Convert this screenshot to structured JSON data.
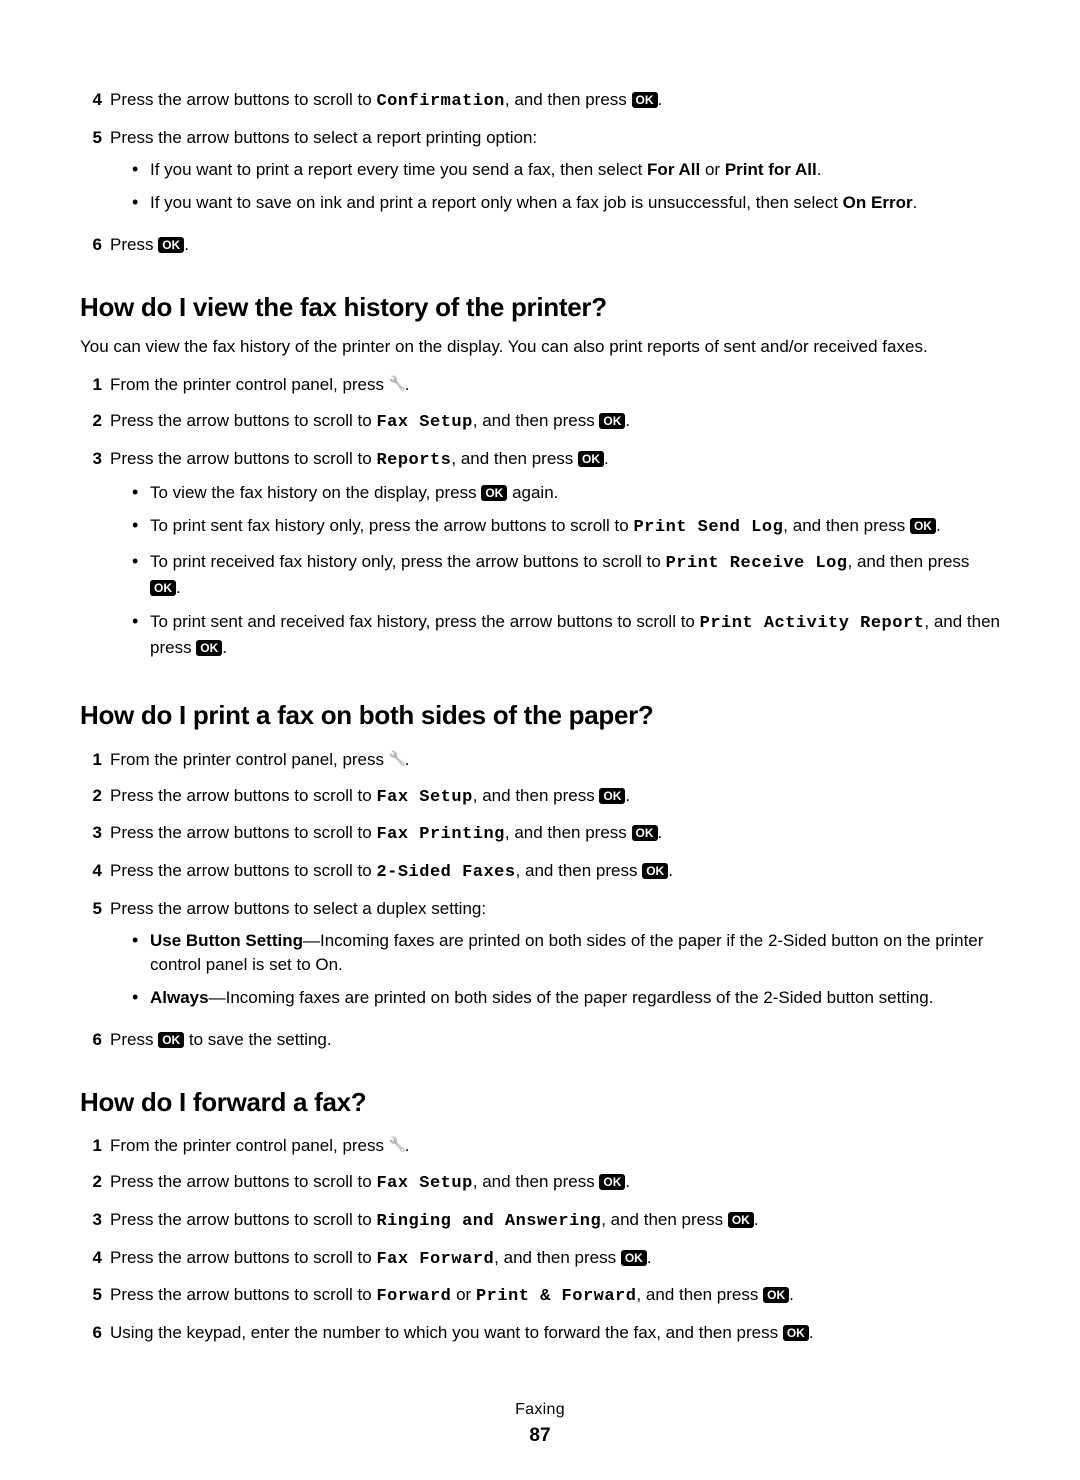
{
  "icons": {
    "ok_label": "OK"
  },
  "top_steps": {
    "s4": {
      "num": "4",
      "t1": "Press the arrow buttons to scroll to ",
      "code": "Confirmation",
      "t2": ", and then press ",
      "t3": "."
    },
    "s5": {
      "num": "5",
      "text": "Press the arrow buttons to select a report printing option:",
      "b1_a": "If you want to print a report every time you send a fax, then select ",
      "b1_bold1": "For All",
      "b1_or": " or ",
      "b1_bold2": "Print for All",
      "b1_end": ".",
      "b2_a": "If you want to save on ink and print a report only when a fax job is unsuccessful, then select ",
      "b2_bold": "On Error",
      "b2_end": "."
    },
    "s6": {
      "num": "6",
      "t1": "Press ",
      "t2": "."
    }
  },
  "sec1": {
    "title": "How do I view the fax history of the printer?",
    "intro": "You can view the fax history of the printer on the display. You can also print reports of sent and/or received faxes.",
    "s1": {
      "num": "1",
      "t1": "From the printer control panel, press ",
      "t2": "."
    },
    "s2": {
      "num": "2",
      "t1": "Press the arrow buttons to scroll to ",
      "code": "Fax Setup",
      "t2": ", and then press ",
      "t3": "."
    },
    "s3": {
      "num": "3",
      "t1": "Press the arrow buttons to scroll to ",
      "code": "Reports",
      "t2": ", and then press ",
      "t3": ".",
      "b1_a": "To view the fax history on the display, press ",
      "b1_b": " again.",
      "b2_a": "To print sent fax history only, press the arrow buttons to scroll to ",
      "b2_code": "Print Send Log",
      "b2_b": ", and then press ",
      "b2_c": ".",
      "b3_a": "To print received fax history only, press the arrow buttons to scroll to ",
      "b3_code": "Print Receive Log",
      "b3_b": ", and then press ",
      "b3_c": ".",
      "b4_a": "To print sent and received fax history, press the arrow buttons to scroll to ",
      "b4_code": "Print Activity Report",
      "b4_b": ", and then press ",
      "b4_c": "."
    }
  },
  "sec2": {
    "title": "How do I print a fax on both sides of the paper?",
    "s1": {
      "num": "1",
      "t1": "From the printer control panel, press ",
      "t2": "."
    },
    "s2": {
      "num": "2",
      "t1": "Press the arrow buttons to scroll to ",
      "code": "Fax Setup",
      "t2": ", and then press ",
      "t3": "."
    },
    "s3": {
      "num": "3",
      "t1": "Press the arrow buttons to scroll to ",
      "code": "Fax Printing",
      "t2": ", and then press ",
      "t3": "."
    },
    "s4": {
      "num": "4",
      "t1": "Press the arrow buttons to scroll to ",
      "code": "2-Sided Faxes",
      "t2": ", and then press ",
      "t3": "."
    },
    "s5": {
      "num": "5",
      "text": "Press the arrow buttons to select a duplex setting:",
      "b1_bold": "Use Button Setting",
      "b1_rest": "—Incoming faxes are printed on both sides of the paper if the 2-Sided button on the printer control panel is set to On.",
      "b2_bold": "Always",
      "b2_rest": "—Incoming faxes are printed on both sides of the paper regardless of the 2-Sided button setting."
    },
    "s6": {
      "num": "6",
      "t1": "Press ",
      "t2": " to save the setting."
    }
  },
  "sec3": {
    "title": "How do I forward a fax?",
    "s1": {
      "num": "1",
      "t1": "From the printer control panel, press ",
      "t2": "."
    },
    "s2": {
      "num": "2",
      "t1": "Press the arrow buttons to scroll to ",
      "code": "Fax Setup",
      "t2": ", and then press ",
      "t3": "."
    },
    "s3": {
      "num": "3",
      "t1": "Press the arrow buttons to scroll to ",
      "code": "Ringing and Answering",
      "t2": ", and then press ",
      "t3": "."
    },
    "s4": {
      "num": "4",
      "t1": "Press the arrow buttons to scroll to ",
      "code": "Fax Forward",
      "t2": ", and then press ",
      "t3": "."
    },
    "s5": {
      "num": "5",
      "t1": "Press the arrow buttons to scroll to ",
      "code1": "Forward",
      "or": " or ",
      "code2": "Print & Forward",
      "t2": ", and then press ",
      "t3": "."
    },
    "s6": {
      "num": "6",
      "t1": "Using the keypad, enter the number to which you want to forward the fax, and then press ",
      "t2": "."
    }
  },
  "footer": {
    "chapter": "Faxing",
    "page": "87"
  }
}
